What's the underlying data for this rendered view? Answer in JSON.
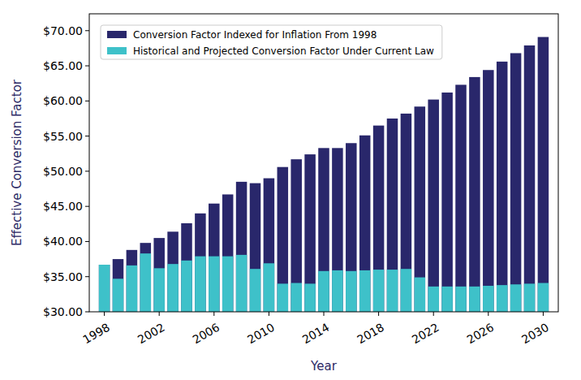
{
  "chart_data": {
    "type": "bar",
    "x_label": "Year",
    "y_label": "Effective Conversion Factor",
    "x": [
      1998,
      1999,
      2000,
      2001,
      2002,
      2003,
      2004,
      2005,
      2006,
      2007,
      2008,
      2009,
      2010,
      2011,
      2012,
      2013,
      2014,
      2015,
      2016,
      2017,
      2018,
      2019,
      2020,
      2021,
      2022,
      2023,
      2024,
      2025,
      2026,
      2027,
      2028,
      2029,
      2030
    ],
    "series": [
      {
        "name": "Conversion Factor Indexed for Inflation From 1998",
        "color": "#29276b",
        "values": [
          36.7,
          37.5,
          38.8,
          39.8,
          40.5,
          41.4,
          42.6,
          44.0,
          45.4,
          46.7,
          48.5,
          48.3,
          49.0,
          50.6,
          51.7,
          52.4,
          53.3,
          53.3,
          54.0,
          55.1,
          56.5,
          57.5,
          58.2,
          59.2,
          60.2,
          61.2,
          62.3,
          63.4,
          64.4,
          65.6,
          66.8,
          67.9,
          69.1
        ]
      },
      {
        "name": "Historical and Projected Conversion Factor Under Current Law",
        "color": "#3ec1c9",
        "values": [
          36.7,
          34.7,
          36.6,
          38.3,
          36.2,
          36.8,
          37.3,
          37.9,
          37.9,
          37.9,
          38.1,
          36.1,
          36.9,
          34.0,
          34.1,
          34.0,
          35.8,
          35.9,
          35.8,
          35.9,
          36.0,
          36.0,
          36.1,
          34.9,
          33.6,
          33.6,
          33.6,
          33.6,
          33.7,
          33.8,
          33.9,
          34.0,
          34.1
        ]
      }
    ],
    "xlim": [
      1996.9,
      2031.1
    ],
    "xticks": [
      1998,
      2002,
      2006,
      2010,
      2014,
      2018,
      2022,
      2026,
      2030
    ],
    "ylim": [
      30,
      72.4
    ],
    "yticks": [
      {
        "value": 30,
        "label": "$30.00"
      },
      {
        "value": 35,
        "label": "$35.00"
      },
      {
        "value": 40,
        "label": "$40.00"
      },
      {
        "value": 45,
        "label": "$45.00"
      },
      {
        "value": 50,
        "label": "$50.00"
      },
      {
        "value": 55,
        "label": "$55.00"
      },
      {
        "value": 60,
        "label": "$60.00"
      },
      {
        "value": 65,
        "label": "$65.00"
      },
      {
        "value": 70,
        "label": "$70.00"
      }
    ],
    "stacked": false,
    "grid": false,
    "legend": "upper left"
  }
}
